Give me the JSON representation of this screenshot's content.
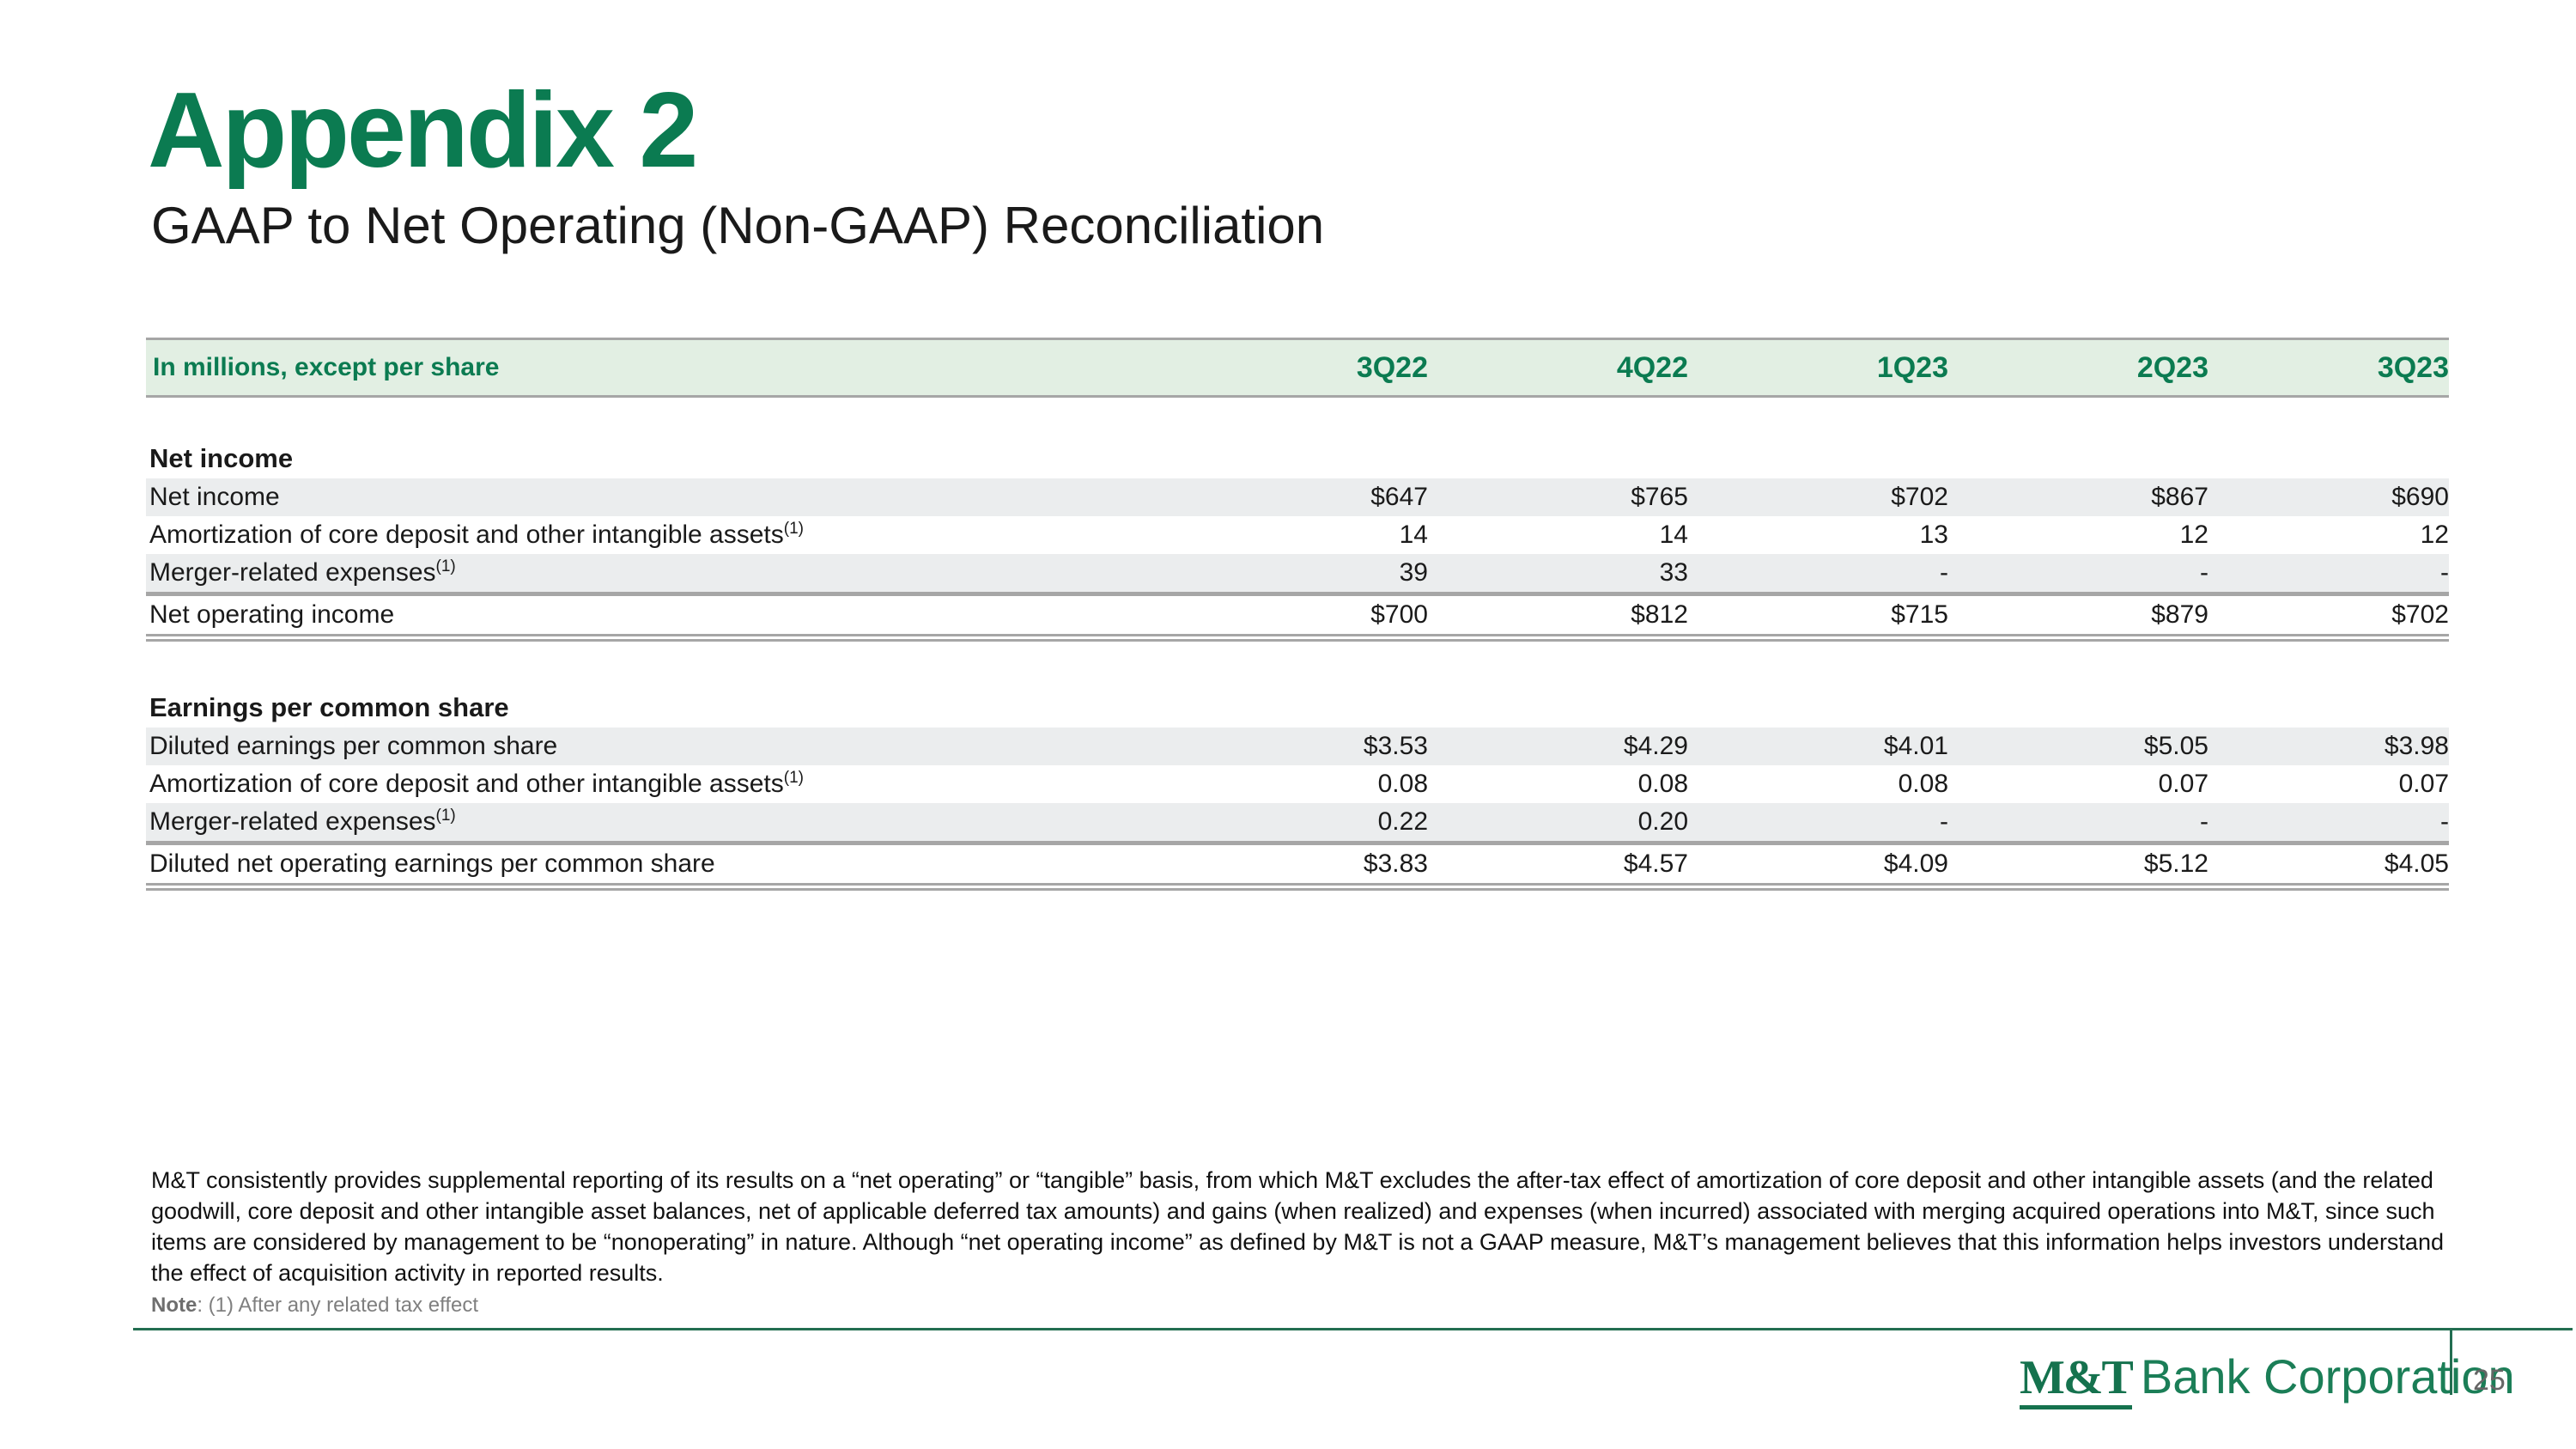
{
  "slide": {
    "title": "Appendix 2",
    "subtitle": "GAAP to Net Operating (Non-GAAP) Reconciliation",
    "page_number": "25"
  },
  "colors": {
    "brand_green": "#0b7b51",
    "header_bar_bg": "#e2efe3",
    "row_stripe_gray": "#ebedee",
    "table_border_gray": "#a6a6a6",
    "note_gray": "#7f7f7f",
    "rule_green": "#236e51"
  },
  "table": {
    "unit_label": "In millions, except per share",
    "columns": [
      "3Q22",
      "4Q22",
      "1Q23",
      "2Q23",
      "3Q23"
    ],
    "sections": [
      {
        "heading": "Net income",
        "rows": [
          {
            "label": "Net income",
            "sup": "",
            "values": [
              "$647",
              "$765",
              "$702",
              "$867",
              "$690"
            ]
          },
          {
            "label": "Amortization of core deposit and other intangible assets",
            "sup": "(1)",
            "values": [
              "14",
              "14",
              "13",
              "12",
              "12"
            ]
          },
          {
            "label": "Merger-related expenses",
            "sup": "(1)",
            "values": [
              "39",
              "33",
              "-",
              "-",
              "-"
            ]
          },
          {
            "label": "Net operating income",
            "sup": "",
            "values": [
              "$700",
              "$812",
              "$715",
              "$879",
              "$702"
            ]
          }
        ]
      },
      {
        "heading": "Earnings per common share",
        "rows": [
          {
            "label": "Diluted earnings per common share",
            "sup": "",
            "values": [
              "$3.53",
              "$4.29",
              "$4.01",
              "$5.05",
              "$3.98"
            ]
          },
          {
            "label": "Amortization of core deposit and other intangible assets",
            "sup": "(1)",
            "values": [
              "0.08",
              "0.08",
              "0.08",
              "0.07",
              "0.07"
            ]
          },
          {
            "label": "Merger-related expenses",
            "sup": "(1)",
            "values": [
              "0.22",
              "0.20",
              "-",
              "-",
              "-"
            ]
          },
          {
            "label": "Diluted net operating earnings per common share",
            "sup": "",
            "values": [
              "$3.83",
              "$4.57",
              "$4.09",
              "$5.12",
              "$4.05"
            ]
          }
        ]
      }
    ]
  },
  "footnote": {
    "lines": [
      "M&T consistently provides supplemental reporting of its results on a “net operating” or “tangible” basis, from which M&T excludes the after-tax effect of amortization of core deposit and other intangible assets (and the related",
      "goodwill, core deposit and other intangible asset balances, net of applicable deferred tax amounts) and gains (when realized) and expenses (when incurred) associated with merging acquired operations into M&T, since such",
      "items are considered by management to be “nonoperating” in nature. Although “net operating income” as defined by M&T is not a GAAP measure, M&T’s management believes that this information helps investors understand",
      "the effect of acquisition activity in reported results."
    ],
    "note_label": "Note",
    "note_rest": ": (1) After any related tax effect"
  },
  "logo": {
    "mt": "M&T",
    "rest": "Bank Corporation"
  }
}
